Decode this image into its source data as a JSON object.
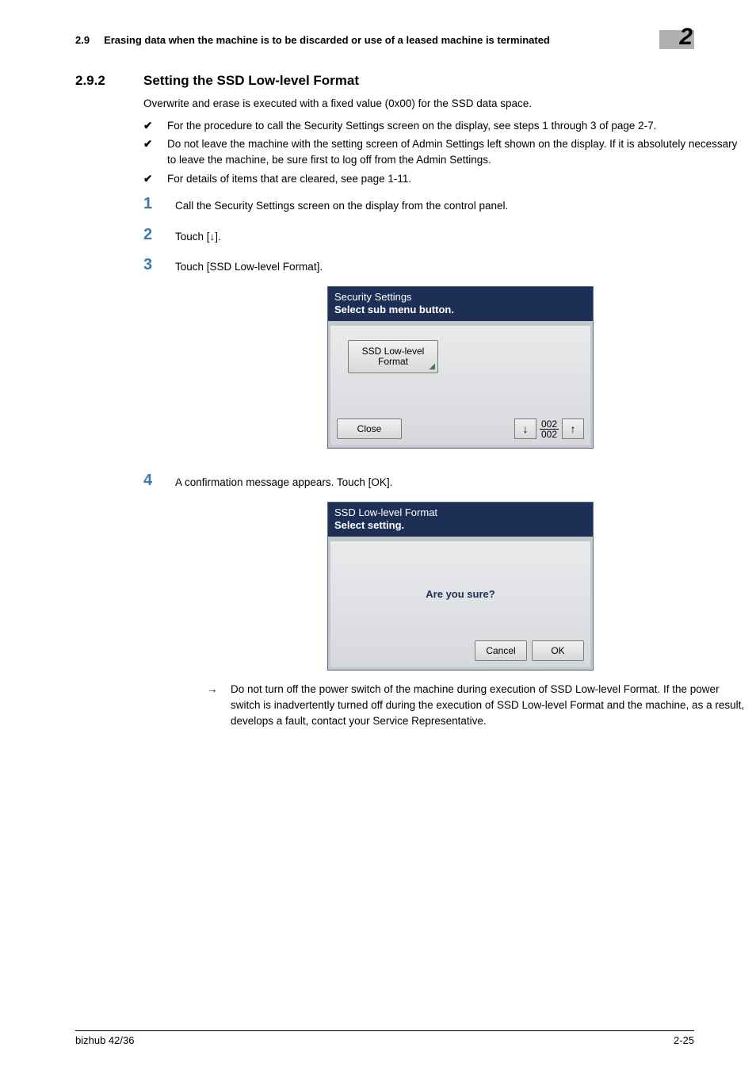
{
  "header": {
    "section_ref": "2.9",
    "running_title": "Erasing data when the machine is to be discarded or use of a leased machine is terminated",
    "chapter_badge": "2"
  },
  "section": {
    "number": "2.9.2",
    "title": "Setting the SSD Low-level Format"
  },
  "intro": "Overwrite and erase is executed with a fixed value (0x00) for the SSD data space.",
  "notes": [
    "For the procedure to call the Security Settings screen on the display, see steps 1 through 3 of page 2-7.",
    "Do not leave the machine with the setting screen of Admin Settings left shown on the display. If it is absolutely necessary to leave the machine, be sure first to log off from the Admin Settings.",
    "For details of items that are cleared, see page 1-11."
  ],
  "steps": {
    "s1": "Call the Security Settings screen on the display from the control panel.",
    "s2": "Touch [↓].",
    "s3": "Touch [SSD Low-level Format].",
    "s4": "A confirmation message appears. Touch [OK]."
  },
  "screen1": {
    "title1": "Security Settings",
    "title2": "Select sub menu button.",
    "ssd_line1": "SSD Low-level",
    "ssd_line2": "Format",
    "close": "Close",
    "page_cur": "002",
    "page_tot": "002"
  },
  "screen2": {
    "title1": "SSD Low-level Format",
    "title2": "Select setting.",
    "confirm": "Are you sure?",
    "cancel": "Cancel",
    "ok": "OK"
  },
  "warning": "Do not turn off the power switch of the machine during execution of SSD Low-level Format. If the power switch is inadvertently turned off during the execution of SSD Low-level Format and the machine, as a result, develops a fault, contact your Service Representative.",
  "footer": {
    "left": "bizhub 42/36",
    "right": "2-25"
  },
  "style": {
    "accent_step_color": "#3a7cae",
    "screen_header_bg": "#1e2f55"
  }
}
